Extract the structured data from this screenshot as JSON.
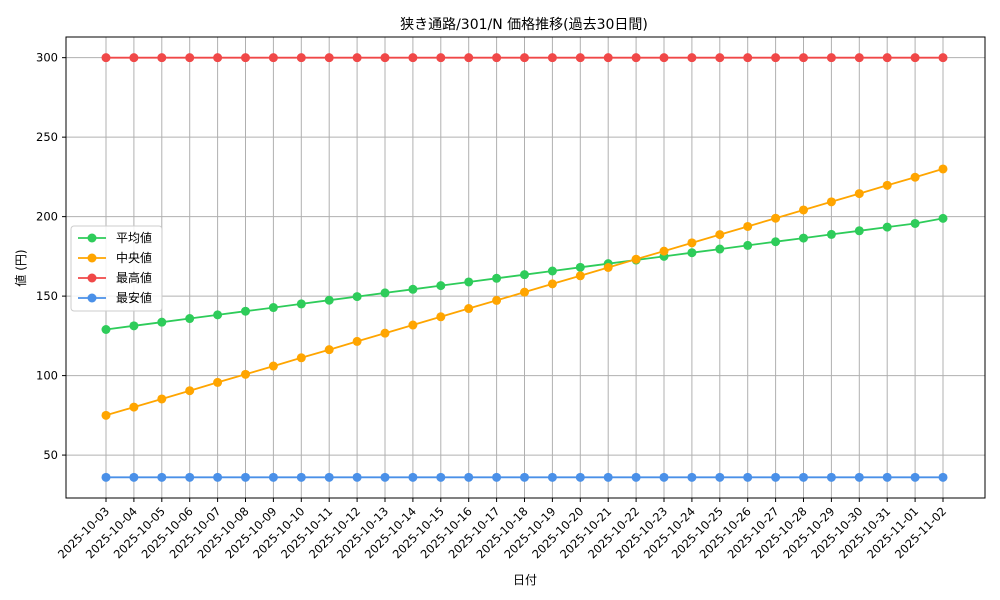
{
  "chart_data": {
    "type": "line",
    "title": "狭き通路/301/N 価格推移(過去30日間)",
    "xlabel": "日付",
    "ylabel": "値 (円)",
    "x": [
      "2025-10-03",
      "2025-10-04",
      "2025-10-05",
      "2025-10-06",
      "2025-10-07",
      "2025-10-08",
      "2025-10-09",
      "2025-10-10",
      "2025-10-11",
      "2025-10-12",
      "2025-10-13",
      "2025-10-14",
      "2025-10-15",
      "2025-10-16",
      "2025-10-17",
      "2025-10-18",
      "2025-10-19",
      "2025-10-20",
      "2025-10-21",
      "2025-10-22",
      "2025-10-23",
      "2025-10-24",
      "2025-10-25",
      "2025-10-26",
      "2025-10-27",
      "2025-10-28",
      "2025-10-29",
      "2025-10-30",
      "2025-10-31",
      "2025-11-01",
      "2025-11-02"
    ],
    "ylim": [
      23,
      313
    ],
    "yticks": [
      50,
      100,
      150,
      200,
      250,
      300
    ],
    "grid": true,
    "legend_position": "center-left",
    "series": [
      {
        "name": "平均値",
        "color": "#2ecc5a",
        "values": [
          129,
          131.3,
          133.6,
          135.9,
          138.2,
          140.5,
          142.8,
          145.1,
          147.4,
          149.7,
          152.0,
          154.3,
          156.6,
          158.9,
          161.2,
          163.5,
          165.8,
          168.1,
          170.4,
          172.7,
          175.0,
          177.3,
          179.6,
          181.9,
          184.2,
          186.5,
          188.8,
          191.1,
          193.4,
          195.7,
          198.9
        ]
      },
      {
        "name": "中央値",
        "color": "#ffa500",
        "values": [
          75,
          80.2,
          85.3,
          90.5,
          95.7,
          100.8,
          106.0,
          111.2,
          116.3,
          121.5,
          126.7,
          131.8,
          137.0,
          142.2,
          147.3,
          152.5,
          157.7,
          162.8,
          168.0,
          173.2,
          178.3,
          183.5,
          188.7,
          193.8,
          199.0,
          204.2,
          209.3,
          214.5,
          219.7,
          224.8,
          230
        ]
      },
      {
        "name": "最高値",
        "color": "#f04848",
        "values": [
          300,
          300,
          300,
          300,
          300,
          300,
          300,
          300,
          300,
          300,
          300,
          300,
          300,
          300,
          300,
          300,
          300,
          300,
          300,
          300,
          300,
          300,
          300,
          300,
          300,
          300,
          300,
          300,
          300,
          300,
          300
        ]
      },
      {
        "name": "最安値",
        "color": "#4a90e8",
        "values": [
          36,
          36,
          36,
          36,
          36,
          36,
          36,
          36,
          36,
          36,
          36,
          36,
          36,
          36,
          36,
          36,
          36,
          36,
          36,
          36,
          36,
          36,
          36,
          36,
          36,
          36,
          36,
          36,
          36,
          36,
          36
        ]
      }
    ]
  }
}
